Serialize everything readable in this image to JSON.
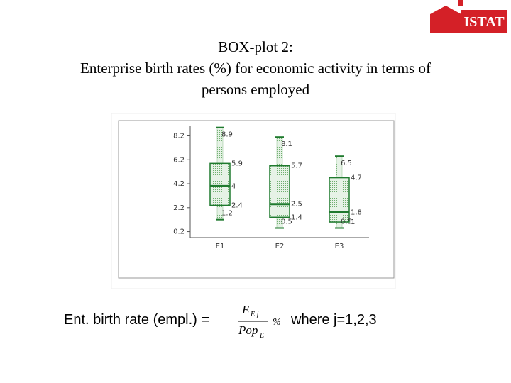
{
  "logo": "ISTAT",
  "chart_data": {
    "type": "box",
    "title": [
      "BOX-plot 2:",
      "Enterprise birth rates (%) for economic activity in terms of",
      "persons employed"
    ],
    "categories": [
      "E1",
      "E2",
      "E3"
    ],
    "min": [
      1.2,
      0.5,
      0.5
    ],
    "q1": [
      2.4,
      1.4,
      1.0
    ],
    "median": [
      4.0,
      2.5,
      1.8
    ],
    "q3": [
      5.9,
      5.7,
      4.7
    ],
    "max": [
      8.9,
      8.1,
      6.5
    ],
    "color": "#1f7a2e",
    "ylim": [
      -0.3,
      9.0
    ],
    "yticks": [
      0.2,
      2.2,
      4.2,
      6.2,
      8.2
    ]
  },
  "formula": {
    "lhs": "Ent. birth rate (empl.) =",
    "numerator": "E",
    "numerator_sub": "E j",
    "denominator": "Pop",
    "denominator_sub": "E",
    "unit": "%",
    "condition": "where j=1,2,3"
  }
}
